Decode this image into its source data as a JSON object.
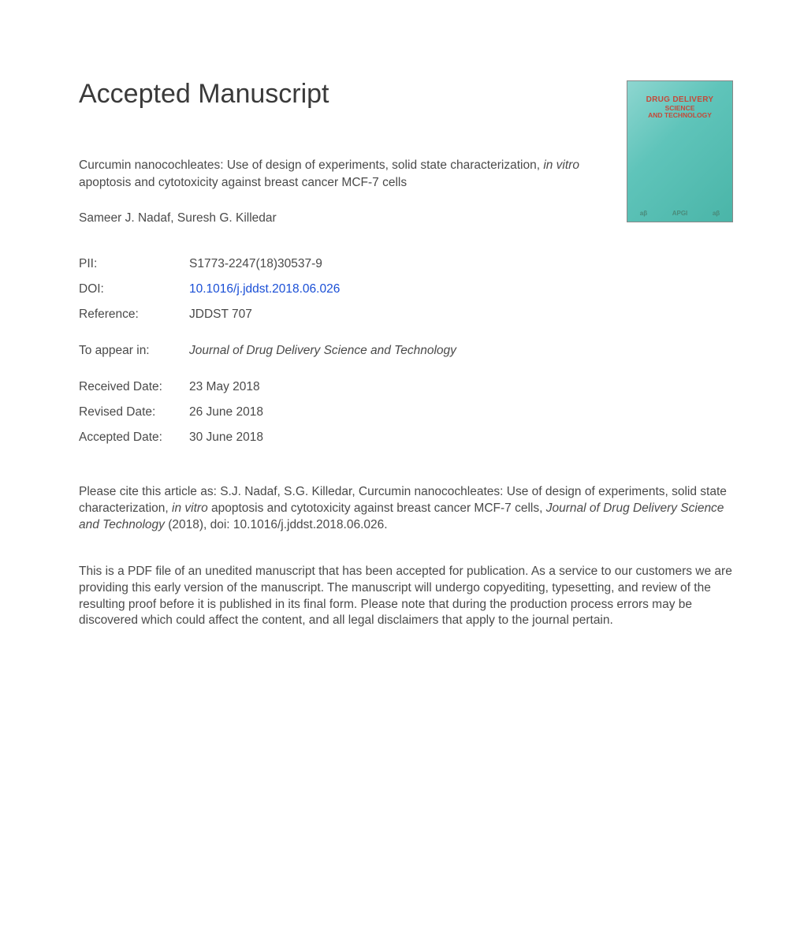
{
  "heading": "Accepted Manuscript",
  "cover": {
    "line1": "DRUG DELIVERY",
    "line2": "SCIENCE",
    "line3": "AND TECHNOLOGY",
    "footer_left": "aβ",
    "footer_mid": "APGI",
    "footer_right": "aβ",
    "bg_gradient_start": "#8ed6d0",
    "bg_gradient_end": "#4ab5a8",
    "title_color": "#c44a3a"
  },
  "article": {
    "title_pre": "Curcumin nanocochleates: Use of design of experiments, solid state characterization, ",
    "title_italic": "in vitro",
    "title_post": " apoptosis and cytotoxicity against breast cancer MCF-7 cells"
  },
  "authors": "Sameer J. Nadaf, Suresh G. Killedar",
  "meta": {
    "pii_label": "PII:",
    "pii_value": "S1773-2247(18)30537-9",
    "doi_label": "DOI:",
    "doi_value": "10.1016/j.jddst.2018.06.026",
    "ref_label": "Reference:",
    "ref_value": "JDDST 707"
  },
  "appear": {
    "label": "To appear in:",
    "value": "Journal of Drug Delivery Science and Technology"
  },
  "dates": {
    "received_label": "Received Date:",
    "received_value": "23 May 2018",
    "revised_label": "Revised Date:",
    "revised_value": "26 June 2018",
    "accepted_label": "Accepted Date:",
    "accepted_value": "30 June 2018"
  },
  "citation": {
    "pre": "Please cite this article as: S.J. Nadaf, S.G. Killedar, Curcumin nanocochleates: Use of design of experiments, solid state characterization, ",
    "italic1": "in vitro",
    "mid": " apoptosis and cytotoxicity against breast cancer MCF-7 cells, ",
    "italic2": "Journal of Drug Delivery Science and Technology",
    "post": " (2018), doi: 10.1016/j.jddst.2018.06.026."
  },
  "disclaimer": "This is a PDF file of an unedited manuscript that has been accepted for publication. As a service to our customers we are providing this early version of the manuscript. The manuscript will undergo copyediting, typesetting, and review of the resulting proof before it is published in its final form. Please note that during the production process errors may be discovered which could affect the content, and all legal disclaimers that apply to the journal pertain.",
  "colors": {
    "text": "#4a4a4a",
    "link": "#1a4fd6",
    "background": "#ffffff"
  },
  "typography": {
    "heading_fontsize": 34,
    "body_fontsize": 15.5,
    "font_family": "Arial"
  }
}
